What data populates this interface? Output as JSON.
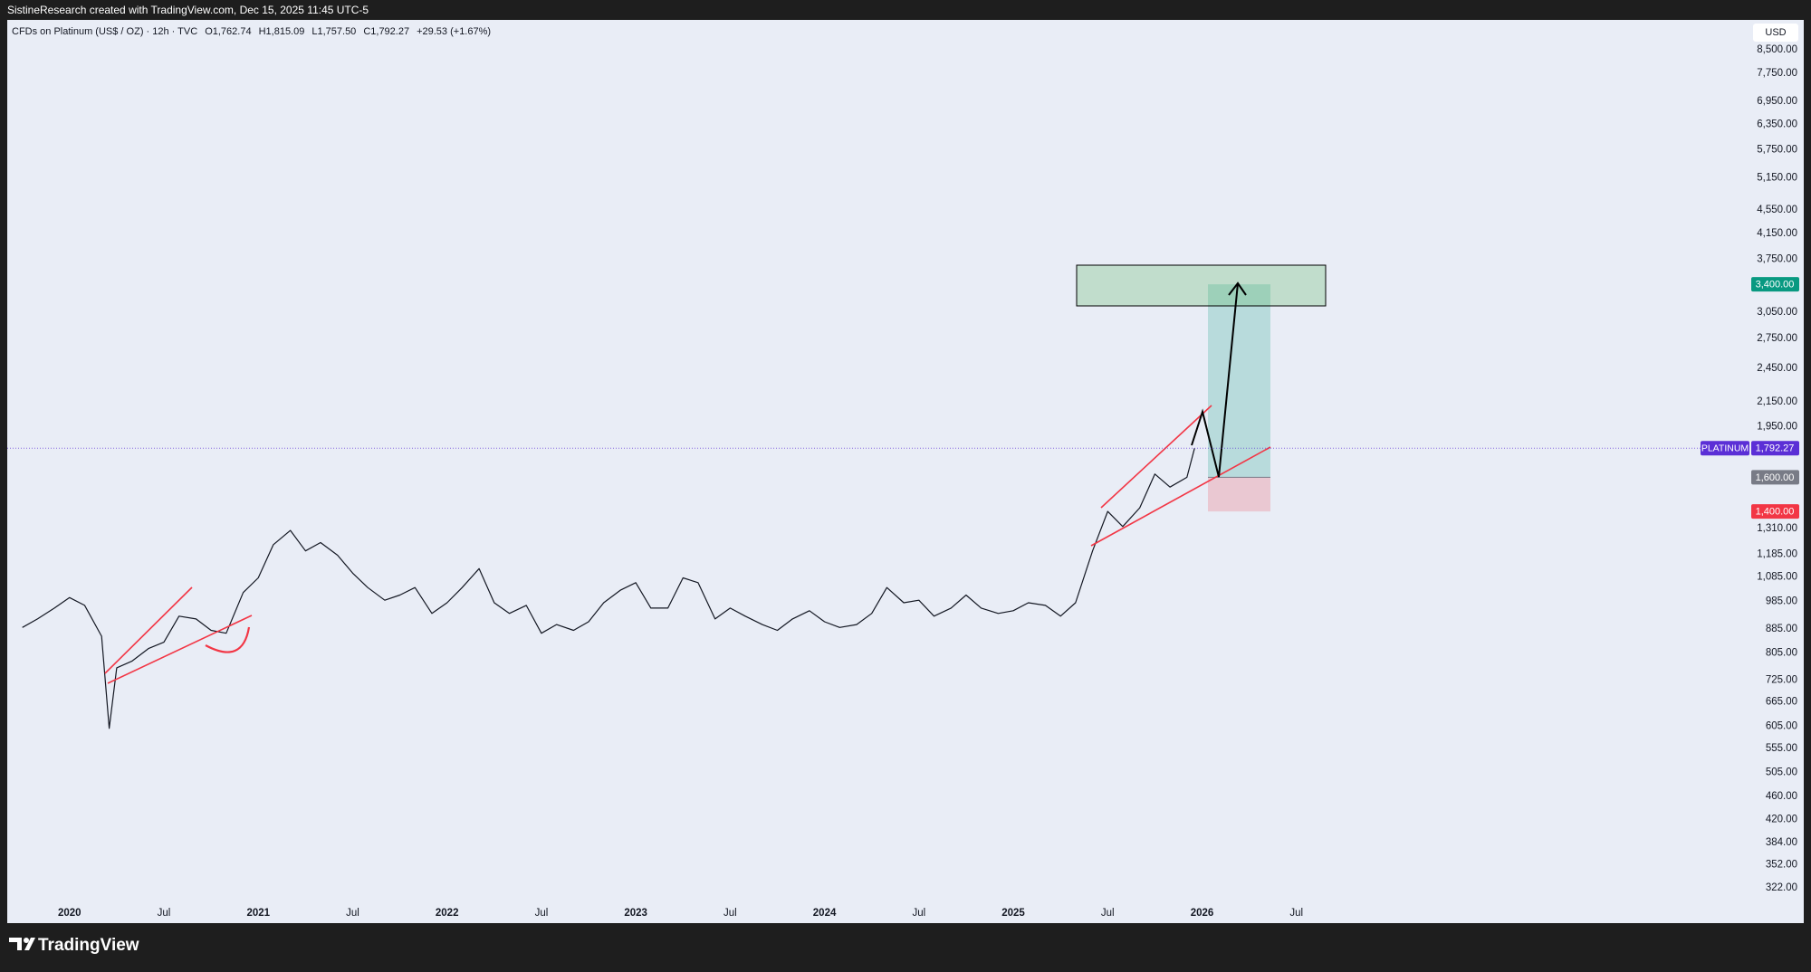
{
  "header": {
    "text": "SistineResearch created with TradingView.com, Dec 15, 2025 11:45 UTC-5"
  },
  "footer": {
    "brand": "TradingView"
  },
  "chart_data": {
    "type": "line",
    "title": "CFDs on Platinum (US$ / OZ) · 12h · TVC",
    "ohlc": [
      {
        "key": "O",
        "value": "1,762.74"
      },
      {
        "key": "H",
        "value": "1,815.09"
      },
      {
        "key": "L",
        "value": "1,757.50"
      },
      {
        "key": "C",
        "value": "1,792.27"
      }
    ],
    "change": "+29.53 (+1.67%)",
    "currency": "USD",
    "color": "#131722",
    "log_scale": true,
    "grid": false,
    "x": [
      2019.75,
      2019.83,
      2019.92,
      2020.0,
      2020.08,
      2020.17,
      2020.21,
      2020.25,
      2020.33,
      2020.42,
      2020.5,
      2020.58,
      2020.67,
      2020.75,
      2020.83,
      2020.92,
      2021.0,
      2021.08,
      2021.17,
      2021.25,
      2021.33,
      2021.42,
      2021.5,
      2021.58,
      2021.67,
      2021.75,
      2021.83,
      2021.92,
      2022.0,
      2022.08,
      2022.17,
      2022.25,
      2022.33,
      2022.42,
      2022.5,
      2022.58,
      2022.67,
      2022.75,
      2022.83,
      2022.92,
      2023.0,
      2023.08,
      2023.17,
      2023.25,
      2023.33,
      2023.42,
      2023.5,
      2023.58,
      2023.67,
      2023.75,
      2023.83,
      2023.92,
      2024.0,
      2024.08,
      2024.17,
      2024.25,
      2024.33,
      2024.42,
      2024.5,
      2024.58,
      2024.67,
      2024.75,
      2024.83,
      2024.92,
      2025.0,
      2025.08,
      2025.17,
      2025.25,
      2025.33,
      2025.42,
      2025.5,
      2025.58,
      2025.67,
      2025.75,
      2025.83,
      2025.92,
      2025.96
    ],
    "values": [
      890,
      920,
      960,
      1000,
      970,
      860,
      600,
      760,
      780,
      820,
      840,
      930,
      920,
      880,
      870,
      1020,
      1080,
      1230,
      1300,
      1200,
      1240,
      1180,
      1100,
      1040,
      990,
      1010,
      1040,
      940,
      980,
      1040,
      1120,
      980,
      940,
      970,
      870,
      900,
      880,
      910,
      980,
      1030,
      1060,
      960,
      960,
      1080,
      1060,
      920,
      960,
      930,
      900,
      880,
      920,
      950,
      910,
      890,
      900,
      940,
      1040,
      980,
      990,
      930,
      960,
      1010,
      960,
      940,
      950,
      980,
      970,
      930,
      980,
      1200,
      1400,
      1320,
      1420,
      1620,
      1540,
      1600,
      1792.27
    ],
    "xlim": [
      2019.67,
      2028.9
    ],
    "ylim": [
      302,
      9550
    ],
    "xticks": [
      {
        "value": 2020,
        "label": "2020"
      },
      {
        "value": 2020.5,
        "label": "Jul"
      },
      {
        "value": 2021,
        "label": "2021"
      },
      {
        "value": 2021.5,
        "label": "Jul"
      },
      {
        "value": 2022,
        "label": "2022"
      },
      {
        "value": 2022.5,
        "label": "Jul"
      },
      {
        "value": 2023,
        "label": "2023"
      },
      {
        "value": 2023.5,
        "label": "Jul"
      },
      {
        "value": 2024,
        "label": "2024"
      },
      {
        "value": 2024.5,
        "label": "Jul"
      },
      {
        "value": 2025,
        "label": "2025"
      },
      {
        "value": 2025.5,
        "label": "Jul"
      },
      {
        "value": 2026,
        "label": "2026"
      },
      {
        "value": 2026.5,
        "label": "Jul"
      }
    ],
    "yticks": [
      {
        "value": 8500,
        "label": "8,500.00"
      },
      {
        "value": 7750,
        "label": "7,750.00"
      },
      {
        "value": 6950,
        "label": "6,950.00"
      },
      {
        "value": 6350,
        "label": "6,350.00"
      },
      {
        "value": 5750,
        "label": "5,750.00"
      },
      {
        "value": 5150,
        "label": "5,150.00"
      },
      {
        "value": 4550,
        "label": "4,550.00"
      },
      {
        "value": 4150,
        "label": "4,150.00"
      },
      {
        "value": 3750,
        "label": "3,750.00"
      },
      {
        "value": 3050,
        "label": "3,050.00"
      },
      {
        "value": 2750,
        "label": "2,750.00"
      },
      {
        "value": 2450,
        "label": "2,450.00"
      },
      {
        "value": 2150,
        "label": "2,150.00"
      },
      {
        "value": 1950,
        "label": "1,950.00"
      },
      {
        "value": 1310,
        "label": "1,310.00"
      },
      {
        "value": 1185,
        "label": "1,185.00"
      },
      {
        "value": 1085,
        "label": "1,085.00"
      },
      {
        "value": 985,
        "label": "985.00"
      },
      {
        "value": 885,
        "label": "885.00"
      },
      {
        "value": 805,
        "label": "805.00"
      },
      {
        "value": 725,
        "label": "725.00"
      },
      {
        "value": 665,
        "label": "665.00"
      },
      {
        "value": 605,
        "label": "605.00"
      },
      {
        "value": 555,
        "label": "555.00"
      },
      {
        "value": 505,
        "label": "505.00"
      },
      {
        "value": 460,
        "label": "460.00"
      },
      {
        "value": 420,
        "label": "420.00"
      },
      {
        "value": 384,
        "label": "384.00"
      },
      {
        "value": 352,
        "label": "352.00"
      },
      {
        "value": 322,
        "label": "322.00"
      }
    ],
    "price_line": {
      "name": "PLATINUM",
      "value": 1792.27,
      "label": "1,792.27",
      "color": "#5b2fd6"
    },
    "position": [
      {
        "value": 3400,
        "label": "3,400.00",
        "color": "#089981"
      },
      {
        "value": 1600,
        "label": "1,600.00",
        "color": "#787b86"
      },
      {
        "value": 1400,
        "label": "1,400.00",
        "color": "#f23645"
      }
    ]
  }
}
